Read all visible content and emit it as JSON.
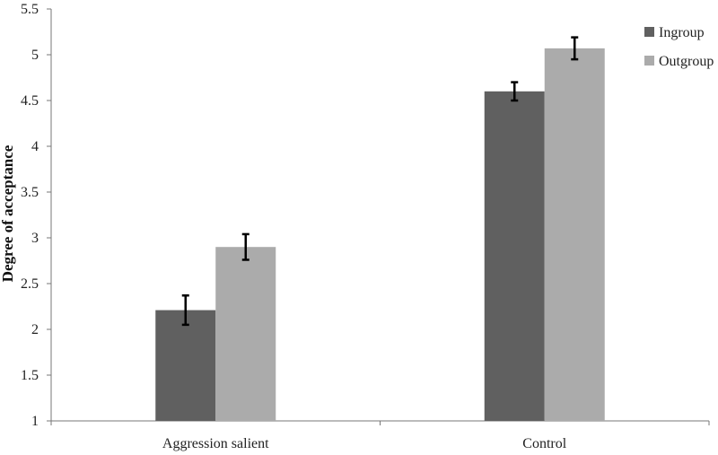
{
  "chart_data": {
    "type": "bar",
    "title": "",
    "xlabel": "",
    "ylabel": "Degree of acceptance",
    "ylim": [
      1,
      5.5
    ],
    "yticks": [
      "1",
      "1.5",
      "2",
      "2.5",
      "3",
      "3.5",
      "4",
      "4.5",
      "5",
      "5.5"
    ],
    "categories": [
      "Aggression salient",
      "Control"
    ],
    "series": [
      {
        "name": "Ingroup",
        "color": "#606060",
        "values": [
          2.21,
          4.6
        ],
        "errors": [
          0.16,
          0.1
        ]
      },
      {
        "name": "Outgroup",
        "color": "#ababab",
        "values": [
          2.9,
          5.07
        ],
        "errors": [
          0.14,
          0.12
        ]
      }
    ],
    "error_bars": true,
    "grid": false,
    "legend_position": "top-right"
  }
}
